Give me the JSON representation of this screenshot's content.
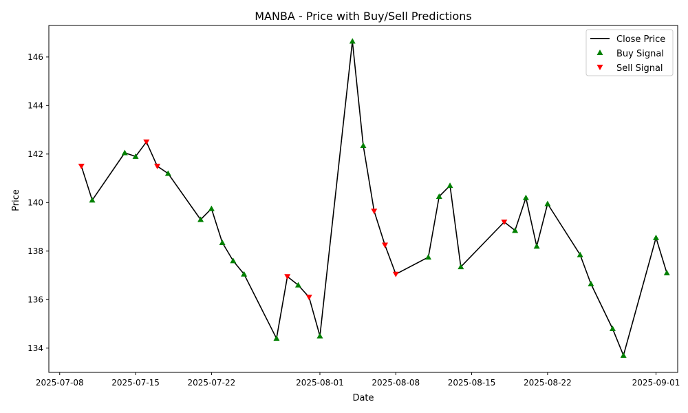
{
  "chart_data": {
    "type": "line",
    "title": "MANBA - Price with Buy/Sell Predictions",
    "xlabel": "Date",
    "ylabel": "Price",
    "xlim": [
      "2025-07-07",
      "2025-09-03"
    ],
    "ylim": [
      133.0,
      147.3
    ],
    "x_ticks": [
      "2025-07-08",
      "2025-07-15",
      "2025-07-22",
      "2025-08-01",
      "2025-08-08",
      "2025-08-15",
      "2025-08-22",
      "2025-09-01"
    ],
    "y_ticks": [
      134,
      136,
      138,
      140,
      142,
      144,
      146
    ],
    "grid": false,
    "legend_position": "top-right",
    "colors": {
      "line": "#000000",
      "buy": "#008000",
      "sell": "#ff0000"
    },
    "series": [
      {
        "name": "Close Price",
        "kind": "line",
        "points": [
          {
            "date": "2025-07-10",
            "value": 141.5,
            "signal": "sell"
          },
          {
            "date": "2025-07-11",
            "value": 140.1,
            "signal": "buy"
          },
          {
            "date": "2025-07-14",
            "value": 142.05,
            "signal": "buy"
          },
          {
            "date": "2025-07-15",
            "value": 141.9,
            "signal": "buy"
          },
          {
            "date": "2025-07-16",
            "value": 142.5,
            "signal": "sell"
          },
          {
            "date": "2025-07-17",
            "value": 141.5,
            "signal": "sell"
          },
          {
            "date": "2025-07-18",
            "value": 141.2,
            "signal": "buy"
          },
          {
            "date": "2025-07-21",
            "value": 139.3,
            "signal": "buy"
          },
          {
            "date": "2025-07-22",
            "value": 139.75,
            "signal": "buy"
          },
          {
            "date": "2025-07-23",
            "value": 138.35,
            "signal": "buy"
          },
          {
            "date": "2025-07-24",
            "value": 137.6,
            "signal": "buy"
          },
          {
            "date": "2025-07-25",
            "value": 137.05,
            "signal": "buy"
          },
          {
            "date": "2025-07-28",
            "value": 134.4,
            "signal": "buy"
          },
          {
            "date": "2025-07-29",
            "value": 136.95,
            "signal": "sell"
          },
          {
            "date": "2025-07-30",
            "value": 136.6,
            "signal": "buy"
          },
          {
            "date": "2025-07-31",
            "value": 136.1,
            "signal": "sell"
          },
          {
            "date": "2025-08-01",
            "value": 134.5,
            "signal": "buy"
          },
          {
            "date": "2025-08-04",
            "value": 146.65,
            "signal": "buy"
          },
          {
            "date": "2025-08-05",
            "value": 142.35,
            "signal": "buy"
          },
          {
            "date": "2025-08-06",
            "value": 139.65,
            "signal": "sell"
          },
          {
            "date": "2025-08-07",
            "value": 138.25,
            "signal": "sell"
          },
          {
            "date": "2025-08-08",
            "value": 137.05,
            "signal": "sell"
          },
          {
            "date": "2025-08-11",
            "value": 137.75,
            "signal": "buy"
          },
          {
            "date": "2025-08-12",
            "value": 140.25,
            "signal": "buy"
          },
          {
            "date": "2025-08-13",
            "value": 140.7,
            "signal": "buy"
          },
          {
            "date": "2025-08-14",
            "value": 137.35,
            "signal": "buy"
          },
          {
            "date": "2025-08-18",
            "value": 139.2,
            "signal": "sell"
          },
          {
            "date": "2025-08-19",
            "value": 138.85,
            "signal": "buy"
          },
          {
            "date": "2025-08-20",
            "value": 140.2,
            "signal": "buy"
          },
          {
            "date": "2025-08-21",
            "value": 138.2,
            "signal": "buy"
          },
          {
            "date": "2025-08-22",
            "value": 139.95,
            "signal": "buy"
          },
          {
            "date": "2025-08-25",
            "value": 137.85,
            "signal": "buy"
          },
          {
            "date": "2025-08-26",
            "value": 136.65,
            "signal": "buy"
          },
          {
            "date": "2025-08-28",
            "value": 134.8,
            "signal": "buy"
          },
          {
            "date": "2025-08-29",
            "value": 133.7,
            "signal": "buy"
          },
          {
            "date": "2025-09-01",
            "value": 138.55,
            "signal": "buy"
          },
          {
            "date": "2025-09-02",
            "value": 137.1,
            "signal": "buy"
          }
        ]
      },
      {
        "name": "Buy Signal",
        "kind": "markers",
        "marker": "triangle-up"
      },
      {
        "name": "Sell Signal",
        "kind": "markers",
        "marker": "triangle-down"
      }
    ]
  }
}
